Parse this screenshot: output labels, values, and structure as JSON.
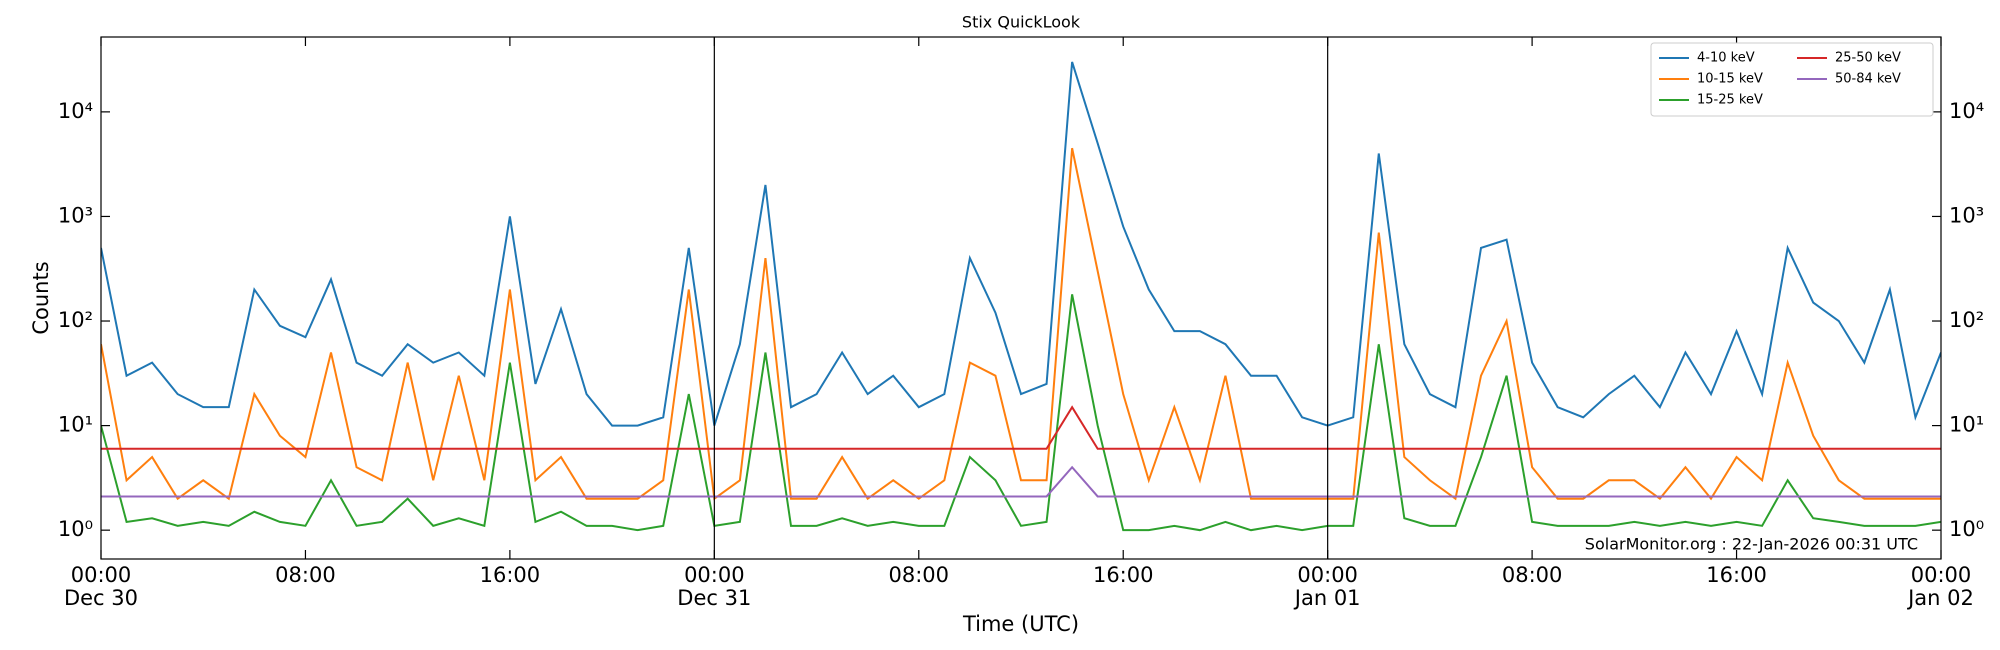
{
  "chart_data": {
    "type": "line",
    "title": "Stix QuickLook",
    "xlabel": "Time (UTC)",
    "ylabel": "Counts",
    "annotation": "SolarMonitor.org : 22-Jan-2026 00:31 UTC",
    "log_y": true,
    "legend": "upper right",
    "legend_columns": 2,
    "x": [
      "Dec 30 00:00",
      "Dec 30 01:00",
      "Dec 30 02:00",
      "Dec 30 03:00",
      "Dec 30 04:00",
      "Dec 30 05:00",
      "Dec 30 06:00",
      "Dec 30 07:00",
      "Dec 30 08:00",
      "Dec 30 09:00",
      "Dec 30 10:00",
      "Dec 30 11:00",
      "Dec 30 12:00",
      "Dec 30 13:00",
      "Dec 30 14:00",
      "Dec 30 15:00",
      "Dec 30 16:00",
      "Dec 30 17:00",
      "Dec 30 18:00",
      "Dec 30 19:00",
      "Dec 30 20:00",
      "Dec 30 21:00",
      "Dec 30 22:00",
      "Dec 30 23:00",
      "Dec 31 00:00",
      "Dec 31 01:00",
      "Dec 31 02:00",
      "Dec 31 03:00",
      "Dec 31 04:00",
      "Dec 31 05:00",
      "Dec 31 06:00",
      "Dec 31 07:00",
      "Dec 31 08:00",
      "Dec 31 09:00",
      "Dec 31 10:00",
      "Dec 31 11:00",
      "Dec 31 12:00",
      "Dec 31 13:00",
      "Dec 31 14:00",
      "Dec 31 15:00",
      "Dec 31 16:00",
      "Dec 31 17:00",
      "Dec 31 18:00",
      "Dec 31 19:00",
      "Dec 31 20:00",
      "Dec 31 21:00",
      "Dec 31 22:00",
      "Dec 31 23:00",
      "Jan 01 00:00",
      "Jan 01 01:00",
      "Jan 01 02:00",
      "Jan 01 03:00",
      "Jan 01 04:00",
      "Jan 01 05:00",
      "Jan 01 06:00",
      "Jan 01 07:00",
      "Jan 01 08:00",
      "Jan 01 09:00",
      "Jan 01 10:00",
      "Jan 01 11:00",
      "Jan 01 12:00",
      "Jan 01 13:00",
      "Jan 01 14:00",
      "Jan 01 15:00",
      "Jan 01 16:00",
      "Jan 01 17:00",
      "Jan 01 18:00",
      "Jan 01 19:00",
      "Jan 01 20:00",
      "Jan 01 21:00",
      "Jan 01 22:00",
      "Jan 01 23:00",
      "Jan 02 00:00"
    ],
    "xlim": [
      "Dec 30 00:00",
      "Jan 02 00:00"
    ],
    "xticks": [
      {
        "value": "Dec 30 00:00",
        "label": "00:00\nDec 30"
      },
      {
        "value": "Dec 30 08:00",
        "label": "08:00"
      },
      {
        "value": "Dec 30 16:00",
        "label": "16:00"
      },
      {
        "value": "Dec 31 00:00",
        "label": "00:00\nDec 31"
      },
      {
        "value": "Dec 31 08:00",
        "label": "08:00"
      },
      {
        "value": "Dec 31 16:00",
        "label": "16:00"
      },
      {
        "value": "Jan 01 00:00",
        "label": "00:00\nJan 01"
      },
      {
        "value": "Jan 01 08:00",
        "label": "08:00"
      },
      {
        "value": "Jan 01 16:00",
        "label": "16:00"
      },
      {
        "value": "Jan 02 00:00",
        "label": "00:00\nJan 02"
      }
    ],
    "vlines": [
      "Dec 31 00:00",
      "Jan 01 00:00"
    ],
    "ylim": [
      0.53,
      52000
    ],
    "yticks": [
      {
        "value": 1,
        "label": "10⁰"
      },
      {
        "value": 10,
        "label": "10¹"
      },
      {
        "value": 100,
        "label": "10²"
      },
      {
        "value": 1000,
        "label": "10³"
      },
      {
        "value": 10000,
        "label": "10⁴"
      }
    ],
    "series": [
      {
        "name": "4-10 keV",
        "color": "#1f77b4",
        "values": [
          500,
          30,
          40,
          20,
          15,
          15,
          200,
          90,
          70,
          250,
          40,
          30,
          60,
          40,
          50,
          30,
          1000,
          25,
          130,
          20,
          10,
          10,
          12,
          500,
          10,
          60,
          2000,
          15,
          20,
          50,
          20,
          30,
          15,
          20,
          400,
          120,
          20,
          25,
          30000,
          5000,
          800,
          200,
          80,
          80,
          60,
          30,
          30,
          12,
          10,
          12,
          4000,
          60,
          20,
          15,
          500,
          600,
          40,
          15,
          12,
          20,
          30,
          15,
          50,
          20,
          80,
          20,
          500,
          150,
          100,
          40,
          200,
          12,
          50
        ]
      },
      {
        "name": "10-15 keV",
        "color": "#ff7f0e",
        "values": [
          60,
          3,
          5,
          2,
          3,
          2,
          20,
          8,
          5,
          50,
          4,
          3,
          40,
          3,
          30,
          3,
          200,
          3,
          5,
          2,
          2,
          2,
          3,
          200,
          2,
          3,
          400,
          2,
          2,
          5,
          2,
          3,
          2,
          3,
          40,
          30,
          3,
          3,
          4500,
          300,
          20,
          3,
          15,
          3,
          30,
          2,
          2,
          2,
          2,
          2,
          700,
          5,
          3,
          2,
          30,
          100,
          4,
          2,
          2,
          3,
          3,
          2,
          4,
          2,
          5,
          3,
          40,
          8,
          3,
          2,
          2,
          2,
          2
        ]
      },
      {
        "name": "15-25 keV",
        "color": "#2ca02c",
        "values": [
          10,
          1.2,
          1.3,
          1.1,
          1.2,
          1.1,
          1.5,
          1.2,
          1.1,
          3,
          1.1,
          1.2,
          2,
          1.1,
          1.3,
          1.1,
          40,
          1.2,
          1.5,
          1.1,
          1.1,
          1.0,
          1.1,
          20,
          1.1,
          1.2,
          50,
          1.1,
          1.1,
          1.3,
          1.1,
          1.2,
          1.1,
          1.1,
          5,
          3,
          1.1,
          1.2,
          180,
          10,
          1.0,
          1.0,
          1.1,
          1.0,
          1.2,
          1.0,
          1.1,
          1.0,
          1.1,
          1.1,
          60,
          1.3,
          1.1,
          1.1,
          5,
          30,
          1.2,
          1.1,
          1.1,
          1.1,
          1.2,
          1.1,
          1.2,
          1.1,
          1.2,
          1.1,
          3,
          1.3,
          1.2,
          1.1,
          1.1,
          1.1,
          1.2
        ]
      },
      {
        "name": "25-50 keV",
        "color": "#d62728",
        "values": [
          6,
          6,
          6,
          6,
          6,
          6,
          6,
          6,
          6,
          6,
          6,
          6,
          6,
          6,
          6,
          6,
          6,
          6,
          6,
          6,
          6,
          6,
          6,
          6,
          6,
          6,
          6,
          6,
          6,
          6,
          6,
          6,
          6,
          6,
          6,
          6,
          6,
          6,
          15,
          6,
          6,
          6,
          6,
          6,
          6,
          6,
          6,
          6,
          6,
          6,
          6,
          6,
          6,
          6,
          6,
          6,
          6,
          6,
          6,
          6,
          6,
          6,
          6,
          6,
          6,
          6,
          6,
          6,
          6,
          6,
          6,
          6,
          6
        ]
      },
      {
        "name": "50-84 keV",
        "color": "#9467bd",
        "values": [
          2.1,
          2.1,
          2.1,
          2.1,
          2.1,
          2.1,
          2.1,
          2.1,
          2.1,
          2.1,
          2.1,
          2.1,
          2.1,
          2.1,
          2.1,
          2.1,
          2.1,
          2.1,
          2.1,
          2.1,
          2.1,
          2.1,
          2.1,
          2.1,
          2.1,
          2.1,
          2.1,
          2.1,
          2.1,
          2.1,
          2.1,
          2.1,
          2.1,
          2.1,
          2.1,
          2.1,
          2.1,
          2.1,
          4,
          2.1,
          2.1,
          2.1,
          2.1,
          2.1,
          2.1,
          2.1,
          2.1,
          2.1,
          2.1,
          2.1,
          2.1,
          2.1,
          2.1,
          2.1,
          2.1,
          2.1,
          2.1,
          2.1,
          2.1,
          2.1,
          2.1,
          2.1,
          2.1,
          2.1,
          2.1,
          2.1,
          2.1,
          2.1,
          2.1,
          2.1,
          2.1,
          2.1,
          2.1
        ]
      }
    ]
  }
}
